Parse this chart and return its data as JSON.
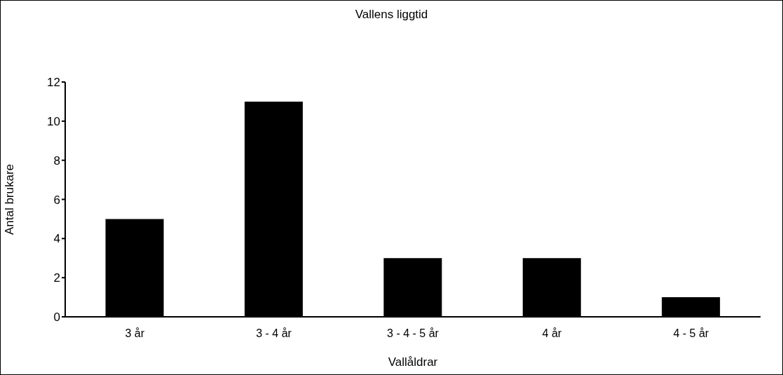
{
  "chart_data": {
    "type": "bar",
    "title": "Vallens liggtid",
    "xlabel": "Vallåldrar",
    "ylabel": "Antal brukare",
    "categories": [
      "3 år",
      "3 - 4 år",
      "3 - 4 - 5 år",
      "4 år",
      "4 - 5 år"
    ],
    "values": [
      5,
      11,
      3,
      3,
      1
    ],
    "color": "#000000",
    "ylim": [
      0,
      12
    ],
    "yticks": [
      0,
      2,
      4,
      6,
      8,
      10,
      12
    ],
    "grid": false
  }
}
